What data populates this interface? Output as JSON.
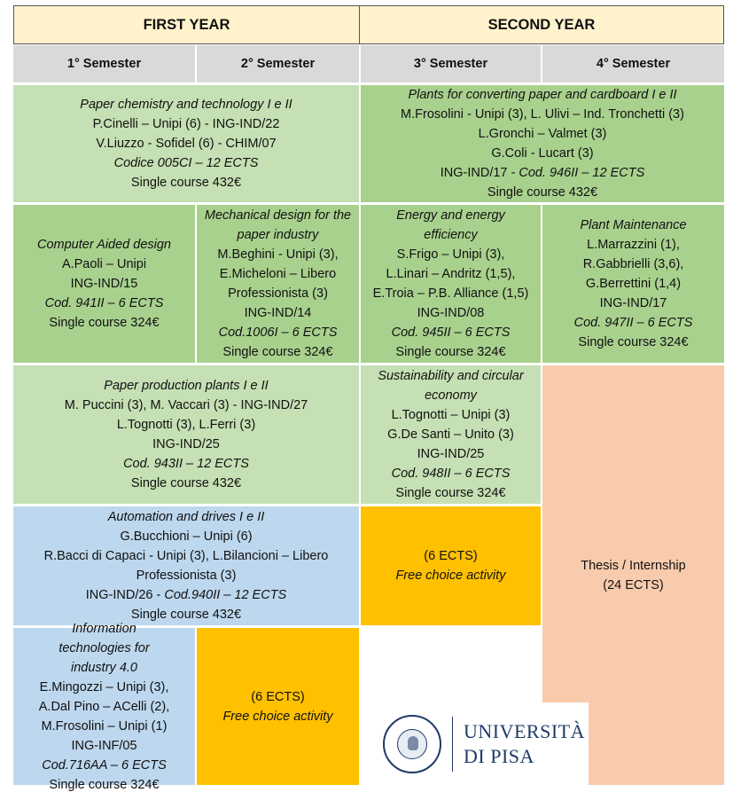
{
  "years": [
    "FIRST YEAR",
    "SECOND YEAR"
  ],
  "semesters": [
    "1° Semester",
    "2° Semester",
    "3° Semester",
    "4° Semester"
  ],
  "courses": {
    "paper_chem": {
      "title": "Paper chemistry and technology I e II",
      "lines": [
        "P.Cinelli – Unipi (6) - ING-IND/22",
        "V.Liuzzo - Sofidel (6) - CHIM/07"
      ],
      "code": "Codice 005CI – 12 ECTS",
      "price": "Single course 432€"
    },
    "plants_conv": {
      "title": "Plants for converting paper and cardboard I e II",
      "lines": [
        "M.Frosolini - Unipi (3), L. Ulivi – Ind. Tronchetti (3)",
        "L.Gronchi – Valmet (3)",
        "G.Coli - Lucart (3)"
      ],
      "code_plain": "ING-IND/17",
      "code": "Cod. 946II – 12 ECTS",
      "price": "Single course 432€"
    },
    "cad": {
      "title": "Computer Aided design",
      "lines": [
        "A.Paoli – Unipi",
        "ING-IND/15"
      ],
      "code": "Cod. 941II – 6 ECTS",
      "price": "Single course 324€"
    },
    "mech": {
      "title": "Mechanical design for the paper industry",
      "lines": [
        "M.Beghini - Unipi (3),",
        "E.Micheloni – Libero",
        "Professionista (3)",
        "ING-IND/14"
      ],
      "code": "Cod.1006I – 6 ECTS",
      "price": "Single course 324€"
    },
    "energy": {
      "title": "Energy and energy efficiency",
      "lines": [
        "S.Frigo – Unipi (3),",
        "L.Linari – Andritz (1,5),",
        "E.Troia – P.B. Alliance (1,5)",
        "ING-IND/08"
      ],
      "code": "Cod. 945II – 6 ECTS",
      "price": "Single course 324€"
    },
    "maint": {
      "title": "Plant Maintenance",
      "lines": [
        "L.Marrazzini (1),",
        "R.Gabbrielli (3,6),",
        "G.Berrettini (1,4)",
        "ING-IND/17"
      ],
      "code": "Cod. 947II – 6 ECTS",
      "price": "Single course 324€"
    },
    "production": {
      "title": "Paper production plants I e II",
      "lines": [
        "M. Puccini (3), M. Vaccari (3) - ING-IND/27",
        "L.Tognotti (3), L.Ferri (3)",
        "ING-IND/25"
      ],
      "code": "Cod. 943II – 12 ECTS",
      "price": "Single course 432€"
    },
    "sustain": {
      "title": "Sustainability and circular economy",
      "lines": [
        "L.Tognotti – Unipi (3)",
        "G.De Santi – Unito (3)",
        "ING-IND/25"
      ],
      "code": "Cod. 948II – 6 ECTS",
      "price": "Single course 324€"
    },
    "thesis": {
      "lines": [
        "Thesis / Internship",
        "(24 ECTS)"
      ]
    },
    "automation": {
      "title": "Automation and drives I e II",
      "lines": [
        "G.Bucchioni – Unipi (6)",
        "R.Bacci di Capaci - Unipi (3), L.Bilancioni – Libero",
        "Professionista (3)"
      ],
      "code_plain": "ING-IND/26 -",
      "code": "Cod.940II – 12 ECTS",
      "price": "Single course 432€"
    },
    "free1": {
      "ects": "(6 ECTS)",
      "label": "Free choice activity"
    },
    "infotech": {
      "title": "Information technologies for industry 4.0",
      "lines": [
        "E.Mingozzi – Unipi (3),",
        "A.Dal Pino – ACelli (2),",
        "M.Frosolini – Unipi (1)",
        "ING-INF/05"
      ],
      "code": "Cod.716AA – 6 ECTS",
      "price": "Single course 324€"
    },
    "free2": {
      "ects": "(6 ECTS)",
      "label": "Free choice activity"
    }
  },
  "logo": {
    "line1": "UNIVERSITÀ",
    "line2": "DI PISA"
  }
}
